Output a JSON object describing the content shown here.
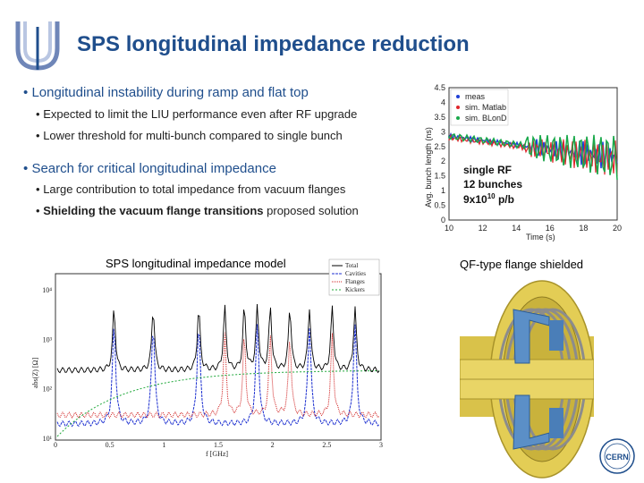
{
  "slide": {
    "title": "SPS longitudinal impedance reduction",
    "bullets": [
      {
        "text": "Longitudinal instability during ramp and flat top",
        "subs": [
          "Expected to limit the LIU performance even after RF upgrade",
          "Lower threshold for multi-bunch compared to single bunch"
        ]
      },
      {
        "text": "Search for critical longitudinal impedance",
        "subs": [
          "Large contribution to total impedance from vacuum flanges",
          "proposed solution"
        ],
        "bold_prefix": "Shielding the vacuum flange transitions"
      }
    ],
    "bullet_char": "•"
  },
  "right_plot": {
    "legend": [
      "meas",
      "sim. Matlab",
      "sim. BLonD"
    ],
    "legend_colors": [
      "#1f3fd6",
      "#e0252b",
      "#19a84a"
    ],
    "ylabel": "Avg. bunch length (ns)",
    "xlabel": "Time (s)",
    "yticks": [
      "4.5",
      "4",
      "3.5",
      "3",
      "2.5",
      "2",
      "1.5",
      "1",
      "0.5",
      "0"
    ],
    "xticks": [
      "10",
      "12",
      "14",
      "16",
      "18",
      "20"
    ],
    "annotation": [
      "single RF",
      "12 bunches",
      "9x10",
      "10",
      " p/b"
    ]
  },
  "left_plot": {
    "caption": "SPS longitudinal impedance model",
    "legend": [
      "Total",
      "Cavities",
      "Flanges",
      "Kickers"
    ],
    "legend_colors": [
      "#000000",
      "#1c2fd0",
      "#d02020",
      "#1fa83a"
    ],
    "ylabel": "abs(Z) [Ω]",
    "xlabel": "f [GHz]",
    "yticks": [
      "10⁴",
      "10³",
      "10²",
      "10¹"
    ],
    "xticks": [
      "0",
      "0.5",
      "1",
      "1.5",
      "2",
      "2.5",
      "3"
    ]
  },
  "flange": {
    "caption": "QF-type flange shielded"
  },
  "colors": {
    "title": "#1f4e8c",
    "accent_blue": "#1f4e8c"
  }
}
